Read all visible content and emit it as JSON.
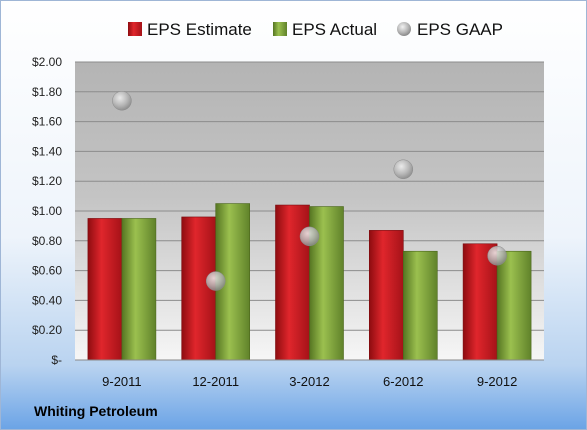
{
  "chart_data": {
    "type": "bar",
    "categories": [
      "9-2011",
      "12-2011",
      "3-2012",
      "6-2012",
      "9-2012"
    ],
    "series": [
      {
        "name": "EPS Estimate",
        "kind": "bar",
        "color": "#c8161d",
        "values": [
          0.95,
          0.96,
          1.04,
          0.87,
          0.78
        ]
      },
      {
        "name": "EPS Actual",
        "kind": "bar",
        "color": "#7da23a",
        "values": [
          0.95,
          1.05,
          1.03,
          0.73,
          0.73
        ]
      },
      {
        "name": "EPS GAAP",
        "kind": "scatter",
        "color": "#b0b0b0",
        "values": [
          1.74,
          0.53,
          0.83,
          1.28,
          0.7
        ]
      }
    ],
    "y_ticks": [
      "$-",
      "$0.20",
      "$0.40",
      "$0.60",
      "$0.80",
      "$1.00",
      "$1.20",
      "$1.40",
      "$1.60",
      "$1.80",
      "$2.00"
    ],
    "ylim": [
      0,
      2.0
    ],
    "grid": true,
    "legend": "top",
    "company": "Whiting Petroleum"
  }
}
